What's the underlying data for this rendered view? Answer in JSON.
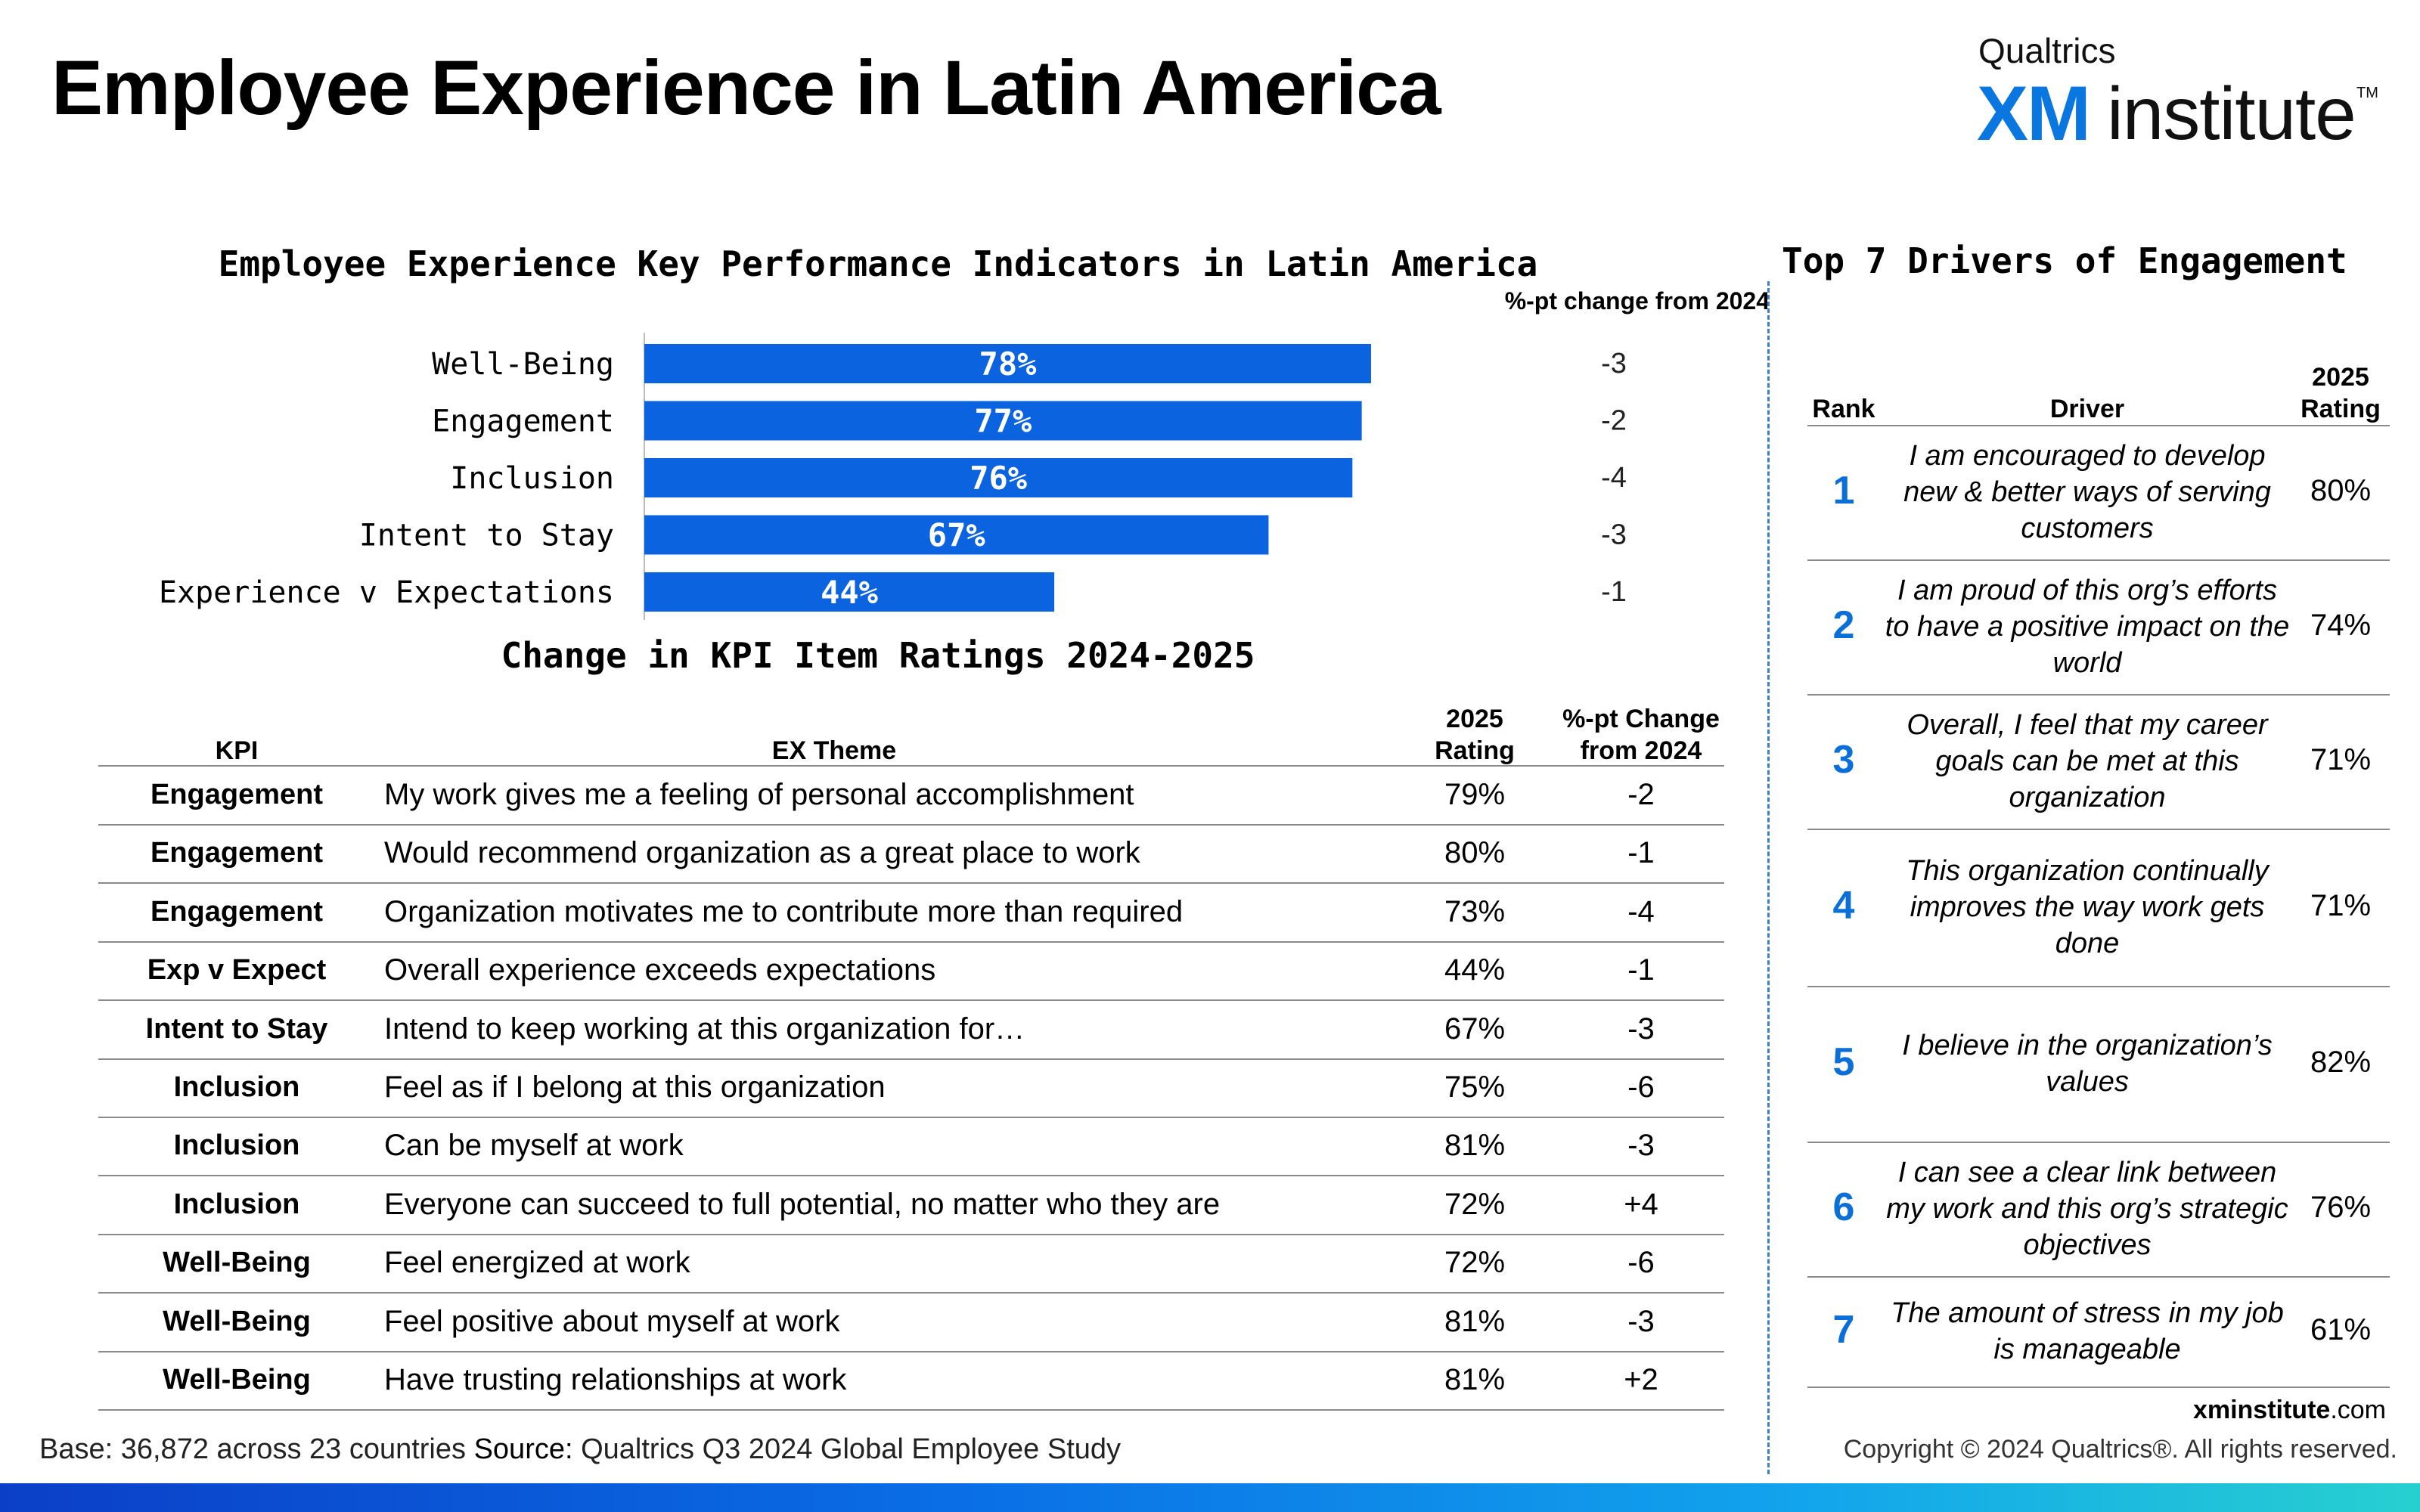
{
  "page": {
    "title": "Employee Experience in Latin America"
  },
  "logo": {
    "top": "Qualtrics",
    "xm": "XM",
    "institute": "institute",
    "tm": "TM"
  },
  "chart_data": [
    {
      "type": "bar",
      "orientation": "horizontal",
      "title": "Employee Experience Key Performance Indicators in Latin America",
      "categories": [
        "Well-Being",
        "Engagement",
        "Inclusion",
        "Intent to Stay",
        "Experience v Expectations"
      ],
      "values": [
        78,
        77,
        76,
        67,
        44
      ],
      "value_labels": [
        "78%",
        "77%",
        "76%",
        "67%",
        "44%"
      ],
      "xlim": [
        0,
        100
      ],
      "change_header": "%-pt change from 2024",
      "changes": [
        "-3",
        "-2",
        "-4",
        "-3",
        "-1"
      ],
      "bar_color": "#0b63e0",
      "grid": false
    }
  ],
  "kpi_table": {
    "title": "Change in KPI Item Ratings 2024-2025",
    "headers": {
      "kpi": "KPI",
      "theme": "EX Theme",
      "rating_line1": "2025",
      "rating_line2": "Rating",
      "change_line1": "%-pt Change",
      "change_line2": "from 2024"
    },
    "rows": [
      {
        "kpi": "Engagement",
        "theme": "My work gives me a feeling of personal accomplishment",
        "rating": "79%",
        "change": "-2"
      },
      {
        "kpi": "Engagement",
        "theme": "Would recommend organization as a great place to work",
        "rating": "80%",
        "change": "-1"
      },
      {
        "kpi": "Engagement",
        "theme": "Organization motivates me to contribute more than required",
        "rating": "73%",
        "change": "-4"
      },
      {
        "kpi": "Exp v Expect",
        "theme": "Overall experience exceeds expectations",
        "rating": "44%",
        "change": "-1"
      },
      {
        "kpi": "Intent to Stay",
        "theme": "Intend to keep working at this organization for…",
        "rating": "67%",
        "change": "-3"
      },
      {
        "kpi": "Inclusion",
        "theme": "Feel as if I belong at this organization",
        "rating": "75%",
        "change": "-6"
      },
      {
        "kpi": "Inclusion",
        "theme": "Can be myself at work",
        "rating": "81%",
        "change": "-3"
      },
      {
        "kpi": "Inclusion",
        "theme": "Everyone can succeed to full potential, no matter who they are",
        "rating": "72%",
        "change": "+4"
      },
      {
        "kpi": "Well-Being",
        "theme": "Feel energized at work",
        "rating": "72%",
        "change": "-6"
      },
      {
        "kpi": "Well-Being",
        "theme": "Feel positive about myself at work",
        "rating": "81%",
        "change": "-3"
      },
      {
        "kpi": "Well-Being",
        "theme": "Have trusting relationships at work",
        "rating": "81%",
        "change": "+2"
      }
    ]
  },
  "drivers": {
    "title": "Top 7 Drivers of Engagement",
    "headers": {
      "rank": "Rank",
      "driver": "Driver",
      "rating_line1": "2025",
      "rating_line2": "Rating"
    },
    "rows": [
      {
        "rank": "1",
        "driver": "I am encouraged to develop new & better ways of serving customers",
        "rating": "80%"
      },
      {
        "rank": "2",
        "driver": "I am proud of this org’s efforts to have a positive impact on the world",
        "rating": "74%"
      },
      {
        "rank": "3",
        "driver": "Overall, I feel that my career goals can be met at this organization",
        "rating": "71%"
      },
      {
        "rank": "4",
        "driver": "This organization continually improves the way work gets done",
        "rating": "71%"
      },
      {
        "rank": "5",
        "driver": "I believe in the organization’s values",
        "rating": "82%"
      },
      {
        "rank": "6",
        "driver": "I can see a clear link between my work and this org’s strategic objectives",
        "rating": "76%"
      },
      {
        "rank": "7",
        "driver": "The amount of stress in my job is manageable",
        "rating": "61%"
      }
    ]
  },
  "footer": {
    "base_label": "Base:",
    "base_text": "36,872 across 23 countries",
    "source_label": "Source:",
    "source_text": "Qualtrics Q3 2024 Global Employee Study",
    "site_bold": "xminstitute",
    "site_rest": ".com",
    "copyright": "Copyright © 2024 Qualtrics®. All rights reserved."
  }
}
